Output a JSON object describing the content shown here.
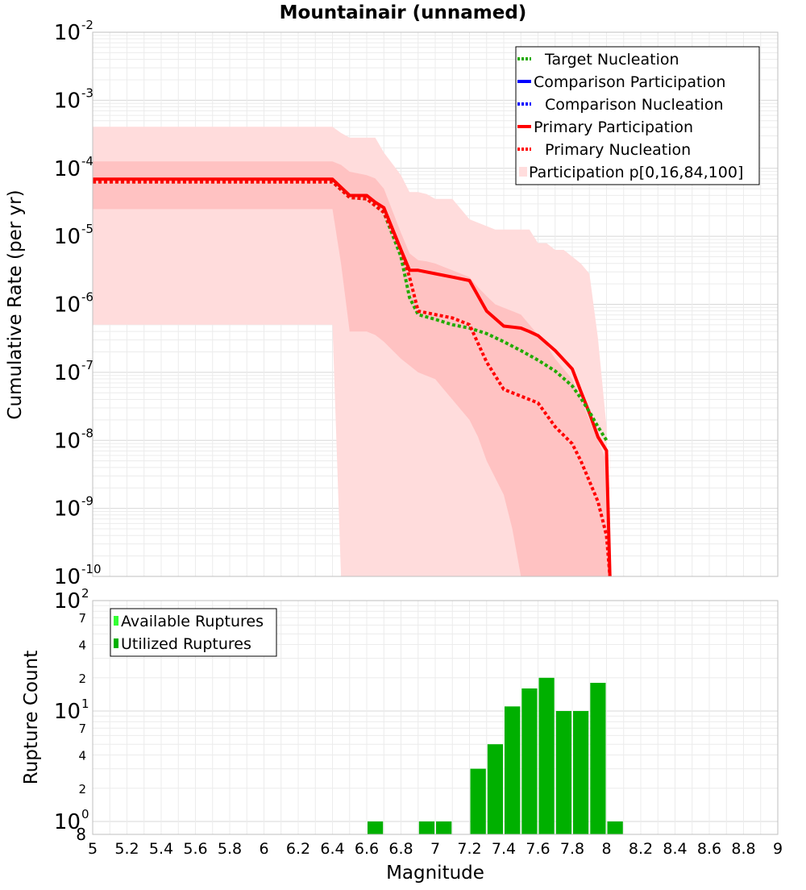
{
  "chart_data": [
    {
      "type": "line",
      "title": "Mountainair (unnamed)",
      "xlabel": "Magnitude",
      "ylabel": "Cumulative Rate (per yr)",
      "yscale": "log",
      "xlim": [
        5,
        9
      ],
      "ylim_exponents": [
        -10,
        -2
      ],
      "ytick_labels": [
        {
          "base": "10",
          "exp": "-2"
        },
        {
          "base": "10",
          "exp": "-3"
        },
        {
          "base": "10",
          "exp": "-4"
        },
        {
          "base": "10",
          "exp": "-5"
        },
        {
          "base": "10",
          "exp": "-6"
        },
        {
          "base": "10",
          "exp": "-7"
        },
        {
          "base": "10",
          "exp": "-8"
        },
        {
          "base": "10",
          "exp": "-9"
        },
        {
          "base": "10",
          "exp": "-10"
        }
      ],
      "grid": true,
      "legend_position": "top-right",
      "legend": [
        {
          "label": "Target Nucleation",
          "color": "#22aa00",
          "style": "dotted"
        },
        {
          "label": "Comparison Participation",
          "color": "#0000ff",
          "style": "solid"
        },
        {
          "label": "Comparison Nucleation",
          "color": "#0000ff",
          "style": "dotted"
        },
        {
          "label": "Primary Participation",
          "color": "#ff0000",
          "style": "solid"
        },
        {
          "label": "Primary Nucleation",
          "color": "#ff0000",
          "style": "dotted"
        },
        {
          "label": "Participation p[0,16,84,100]",
          "color": "#ffdddd",
          "style": "band"
        }
      ],
      "bands": [
        {
          "name": "p0-p100",
          "color": "#ffdcdc",
          "x": [
            5.0,
            6.4,
            6.45,
            6.5,
            6.6,
            6.65,
            6.7,
            6.8,
            6.85,
            6.9,
            6.95,
            7.0,
            7.05,
            7.1,
            7.15,
            7.2,
            7.25,
            7.3,
            7.35,
            7.4,
            7.45,
            7.5,
            7.55,
            7.6,
            7.65,
            7.7,
            7.75,
            7.8,
            7.85,
            7.9,
            7.95,
            8.0,
            8.01
          ],
          "upper_exp": [
            -3.39,
            -3.39,
            -3.48,
            -3.55,
            -3.55,
            -3.55,
            -3.77,
            -4.1,
            -4.35,
            -4.35,
            -4.38,
            -4.45,
            -4.45,
            -4.45,
            -4.6,
            -4.75,
            -4.8,
            -4.85,
            -4.9,
            -4.9,
            -4.9,
            -4.9,
            -4.9,
            -5.1,
            -5.1,
            -5.2,
            -5.2,
            -5.3,
            -5.4,
            -5.55,
            -6.5,
            -7.8,
            -10
          ],
          "lower_exp": [
            -6.3,
            -6.3,
            -10,
            -10,
            -10,
            -10,
            -10,
            -10,
            -10,
            -10,
            -10,
            -10,
            -10,
            -10,
            -10,
            -10,
            -10,
            -10,
            -10,
            -10,
            -10,
            -10,
            -10,
            -10,
            -10,
            -10,
            -10,
            -10,
            -10,
            -10,
            -10,
            -10,
            -10
          ]
        },
        {
          "name": "p16-p84",
          "color": "#ffc2c2",
          "x": [
            5.0,
            6.4,
            6.45,
            6.5,
            6.6,
            6.65,
            6.7,
            6.8,
            6.85,
            6.9,
            6.95,
            7.0,
            7.05,
            7.1,
            7.15,
            7.2,
            7.25,
            7.3,
            7.35,
            7.4,
            7.45,
            7.5,
            7.55,
            7.6,
            7.65,
            7.7,
            7.75,
            7.8,
            7.85,
            7.9,
            7.95,
            8.0,
            8.01
          ],
          "upper_exp": [
            -3.9,
            -3.9,
            -3.95,
            -4.05,
            -4.1,
            -4.15,
            -4.3,
            -4.95,
            -5.25,
            -5.35,
            -5.37,
            -5.4,
            -5.45,
            -5.5,
            -5.55,
            -5.6,
            -5.75,
            -5.88,
            -6.0,
            -6.05,
            -6.1,
            -6.15,
            -6.3,
            -6.45,
            -6.6,
            -6.8,
            -6.95,
            -7.1,
            -7.4,
            -7.7,
            -8.0,
            -8.3,
            -10
          ],
          "lower_exp": [
            -4.6,
            -4.6,
            -5.4,
            -6.4,
            -6.4,
            -6.45,
            -6.55,
            -6.8,
            -6.9,
            -7.0,
            -7.05,
            -7.1,
            -7.25,
            -7.4,
            -7.55,
            -7.7,
            -7.95,
            -8.3,
            -8.55,
            -8.8,
            -9.3,
            -10,
            -10,
            -10,
            -10,
            -10,
            -10,
            -10,
            -10,
            -10,
            -10,
            -10,
            -10
          ]
        }
      ],
      "series": [
        {
          "name": "Target Nucleation",
          "color": "#22aa00",
          "style": "dotted",
          "x": [
            5.0,
            6.4,
            6.5,
            6.6,
            6.65,
            6.7,
            6.8,
            6.85,
            6.9,
            7.0,
            7.1,
            7.2,
            7.3,
            7.4,
            7.5,
            7.6,
            7.7,
            7.8,
            7.85,
            7.9,
            7.95,
            8.0
          ],
          "y_exp": [
            -4.2,
            -4.2,
            -4.43,
            -4.45,
            -4.55,
            -4.65,
            -5.3,
            -5.9,
            -6.15,
            -6.22,
            -6.3,
            -6.35,
            -6.43,
            -6.55,
            -6.68,
            -6.82,
            -6.98,
            -7.2,
            -7.38,
            -7.58,
            -7.8,
            -8.0
          ]
        },
        {
          "name": "Primary Participation",
          "color": "#ff0000",
          "style": "solid",
          "x": [
            5.0,
            6.4,
            6.5,
            6.6,
            6.65,
            6.7,
            6.8,
            6.85,
            6.9,
            7.0,
            7.1,
            7.2,
            7.3,
            7.4,
            7.5,
            7.55,
            7.6,
            7.7,
            7.8,
            7.85,
            7.9,
            7.95,
            8.0,
            8.02
          ],
          "y_exp": [
            -4.16,
            -4.16,
            -4.4,
            -4.4,
            -4.5,
            -4.58,
            -5.2,
            -5.5,
            -5.5,
            -5.55,
            -5.6,
            -5.65,
            -6.1,
            -6.32,
            -6.35,
            -6.4,
            -6.46,
            -6.68,
            -6.95,
            -7.28,
            -7.6,
            -7.95,
            -8.15,
            -10
          ]
        },
        {
          "name": "Primary Nucleation",
          "color": "#ff0000",
          "style": "dotted",
          "x": [
            5.0,
            6.4,
            6.5,
            6.6,
            6.65,
            6.7,
            6.8,
            6.85,
            6.9,
            7.0,
            7.1,
            7.2,
            7.3,
            7.4,
            7.5,
            7.6,
            7.7,
            7.8,
            7.85,
            7.9,
            7.95,
            8.0,
            8.02
          ],
          "y_exp": [
            -4.2,
            -4.2,
            -4.43,
            -4.45,
            -4.55,
            -4.65,
            -5.2,
            -5.6,
            -6.1,
            -6.15,
            -6.2,
            -6.3,
            -6.85,
            -7.25,
            -7.35,
            -7.45,
            -7.8,
            -8.05,
            -8.3,
            -8.6,
            -8.9,
            -9.4,
            -10
          ]
        }
      ]
    },
    {
      "type": "bar",
      "xlabel": "Magnitude",
      "ylabel": "Rupture Count",
      "yscale": "log",
      "xlim": [
        5,
        9
      ],
      "ytick_labels": [
        {
          "base": "10",
          "exp": "2"
        },
        {
          "base": "",
          "exp": "",
          "minor": "7"
        },
        {
          "base": "",
          "exp": "",
          "minor": "4"
        },
        {
          "base": "",
          "exp": "",
          "minor": "2"
        },
        {
          "base": "10",
          "exp": "1"
        },
        {
          "base": "",
          "exp": "",
          "minor": "7"
        },
        {
          "base": "",
          "exp": "",
          "minor": "4"
        },
        {
          "base": "",
          "exp": "",
          "minor": "2"
        },
        {
          "base": "10",
          "exp": "0"
        },
        {
          "base": "",
          "exp": "",
          "minor": "8"
        }
      ],
      "xtick_labels": [
        "5",
        "5.2",
        "5.4",
        "5.6",
        "5.8",
        "6",
        "6.2",
        "6.4",
        "6.6",
        "6.8",
        "7",
        "7.2",
        "7.4",
        "7.6",
        "7.8",
        "8",
        "8.2",
        "8.4",
        "8.6",
        "8.8",
        "9"
      ],
      "legend_position": "top-left",
      "legend": [
        {
          "label": "Available Ruptures",
          "color": "#33ff33"
        },
        {
          "label": "Utilized Ruptures",
          "color": "#00b000"
        }
      ],
      "bar_color": "#00b000",
      "bar_width": 0.1,
      "bar_centers": [
        6.65,
        6.95,
        7.05,
        7.25,
        7.35,
        7.45,
        7.55,
        7.65,
        7.75,
        7.85,
        7.95,
        8.05
      ],
      "values": [
        1,
        1,
        1,
        3,
        5,
        11,
        16,
        20,
        10,
        10,
        18,
        1
      ]
    }
  ]
}
